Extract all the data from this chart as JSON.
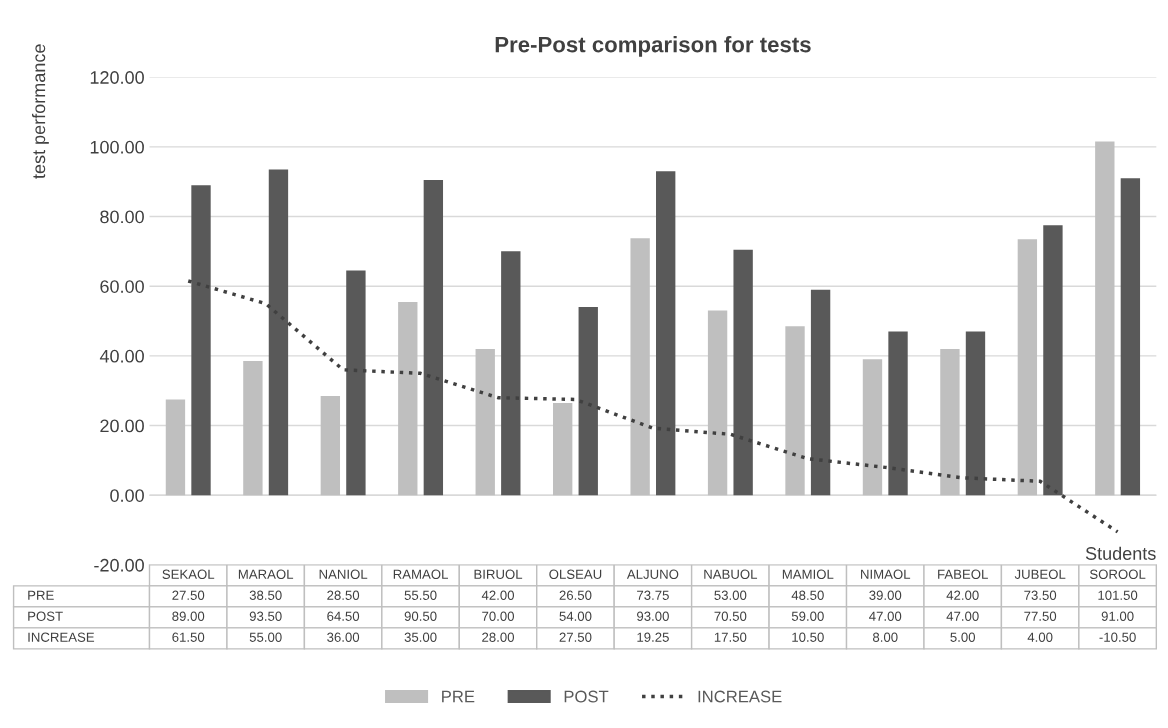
{
  "chart_data": {
    "type": "bar",
    "title": "Pre-Post comparison for tests",
    "ylabel": "test performance",
    "xlabel": "Students",
    "categories": [
      "SEKAOL",
      "MARAOL",
      "NANIOL",
      "RAMAOL",
      "BIRUOL",
      "OLSEAU",
      "ALJUNO",
      "NABUOL",
      "MAMIOL",
      "NIMAOL",
      "FABEOL",
      "JUBEOL",
      "SOROOL"
    ],
    "series": [
      {
        "name": "PRE",
        "color": "#bfbfbf",
        "values": [
          27.5,
          38.5,
          28.5,
          55.5,
          42,
          26.5,
          73.75,
          53,
          48.5,
          39,
          42,
          73.5,
          101.5
        ],
        "value_labels": [
          "27.50",
          "38.50",
          "28.50",
          "55.50",
          "42.00",
          "26.50",
          "73.75",
          "53.00",
          "48.50",
          "39.00",
          "42.00",
          "73.50",
          "101.50"
        ]
      },
      {
        "name": "POST",
        "color": "#595959",
        "values": [
          89,
          93.5,
          64.5,
          90.5,
          70,
          54,
          93,
          70.5,
          59,
          47,
          47,
          77.5,
          91
        ],
        "value_labels": [
          "89.00",
          "93.50",
          "64.50",
          "90.50",
          "70.00",
          "54.00",
          "93.00",
          "70.50",
          "59.00",
          "47.00",
          "47.00",
          "77.50",
          "91.00"
        ]
      },
      {
        "name": "INCREASE",
        "type": "line",
        "color": "#404040",
        "line_style": "dotted",
        "values": [
          61.5,
          55,
          36,
          35,
          28,
          27.5,
          19.25,
          17.5,
          10.5,
          8,
          5,
          4,
          -10.5
        ],
        "value_labels": [
          "61.50",
          "55.00",
          "36.00",
          "35.00",
          "28.00",
          "27.50",
          "19.25",
          "17.50",
          "10.50",
          "8.00",
          "5.00",
          "4.00",
          "-10.50"
        ]
      }
    ],
    "ylim": [
      -20,
      120
    ],
    "yticks": [
      {
        "value": -20,
        "label": "-20.00"
      },
      {
        "value": 0,
        "label": "0.00"
      },
      {
        "value": 20,
        "label": "20.00"
      },
      {
        "value": 40,
        "label": "40.00"
      },
      {
        "value": 60,
        "label": "60.00"
      },
      {
        "value": 80,
        "label": "80.00"
      },
      {
        "value": 100,
        "label": "100.00"
      },
      {
        "value": 120,
        "label": "120.00"
      }
    ],
    "grid": "y",
    "legend": "bottom"
  }
}
